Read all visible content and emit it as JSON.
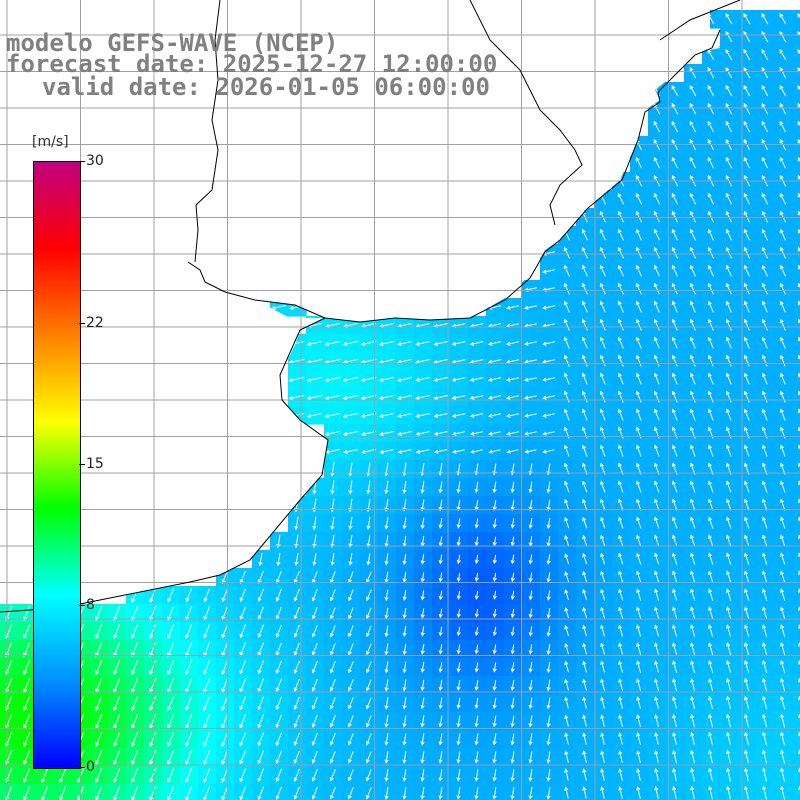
{
  "title": {
    "model": "modelo GEFS-WAVE (NCEP)",
    "forecast": "forecast date: 2025-12-27 12:00:00",
    "valid": "valid date: 2026-01-05 06:00:00"
  },
  "colorbar": {
    "units": "[m/s]",
    "min": 0,
    "max": 30,
    "ticks": [
      {
        "label": "30",
        "value": 30
      },
      {
        "label": "22",
        "value": 22
      },
      {
        "label": "15",
        "value": 15
      },
      {
        "label": "8",
        "value": 8
      },
      {
        "label": "0",
        "value": 0
      }
    ],
    "colors": [
      "#0000ff",
      "#0090ff",
      "#00ffff",
      "#00ff00",
      "#ffff00",
      "#ff8000",
      "#ff0000",
      "#c00080"
    ]
  },
  "map": {
    "variable": "wind speed and direction",
    "land_color": "#ffffff",
    "grid_color": "#a0a0a0",
    "coast_color": "#000000"
  }
}
